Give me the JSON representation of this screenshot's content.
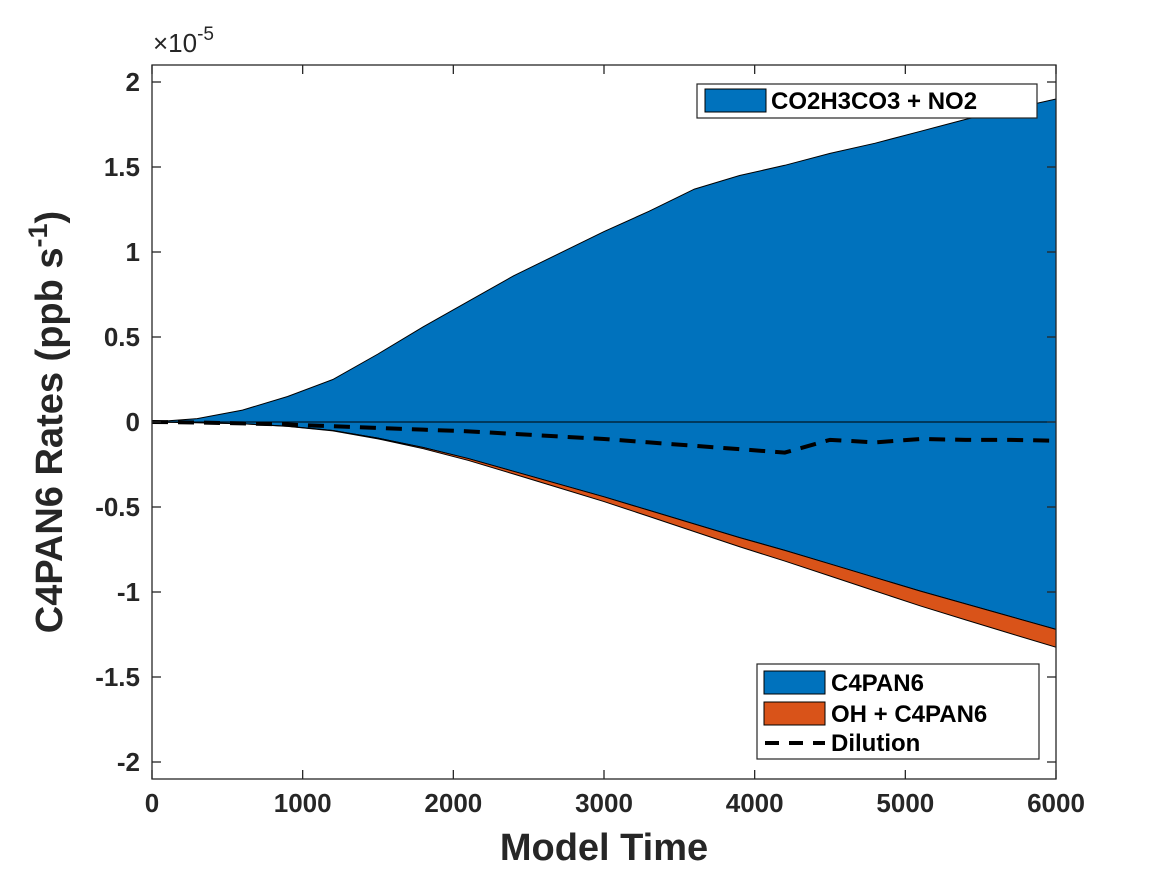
{
  "chart_data": {
    "type": "area",
    "xlabel": "Model Time",
    "ylabel": "C4PAN6 Rates (ppb s",
    "ylabel_exponent": "-1",
    "ylabel_close": ")",
    "y_multiplier_prefix": "×10",
    "y_multiplier_exponent": "-5",
    "xlim": [
      0,
      6000
    ],
    "ylim": [
      -2.1,
      2.1
    ],
    "xticks": [
      0,
      1000,
      2000,
      3000,
      4000,
      5000,
      6000
    ],
    "xtick_labels": [
      "0",
      "1000",
      "2000",
      "3000",
      "4000",
      "5000",
      "6000"
    ],
    "yticks": [
      2,
      1.5,
      1,
      0.5,
      0,
      -0.5,
      -1,
      -1.5,
      -2
    ],
    "ytick_labels": [
      "2",
      "1.5",
      "1",
      "0.5",
      "0",
      "-0.5",
      "-1",
      "-1.5",
      "-2"
    ],
    "grid": false,
    "legend_top": {
      "placement": "top-right",
      "entries": [
        "CO2H3CO3 + NO2"
      ]
    },
    "legend_bottom": {
      "placement": "bottom-right",
      "entries": [
        "C4PAN6",
        "OH + C4PAN6",
        "Dilution"
      ]
    },
    "colors": {
      "blue": "#0072BD",
      "orange": "#D95319",
      "dilution": "#000000"
    },
    "x": [
      0,
      300,
      600,
      900,
      1200,
      1500,
      1800,
      2100,
      2400,
      2700,
      3000,
      3300,
      3600,
      3900,
      4200,
      4500,
      4800,
      5100,
      5400,
      5700,
      6000
    ],
    "series": [
      {
        "name": "CO2H3CO3 + NO2",
        "color": "blue",
        "values": [
          0,
          0.02,
          0.07,
          0.15,
          0.25,
          0.4,
          0.56,
          0.71,
          0.86,
          0.99,
          1.12,
          1.24,
          1.37,
          1.45,
          1.51,
          1.58,
          1.64,
          1.71,
          1.78,
          1.84,
          1.9
        ]
      },
      {
        "name": "C4PAN6",
        "color": "blue",
        "values": [
          0,
          -0.004,
          -0.01,
          -0.025,
          -0.05,
          -0.095,
          -0.15,
          -0.215,
          -0.29,
          -0.365,
          -0.44,
          -0.52,
          -0.6,
          -0.68,
          -0.755,
          -0.835,
          -0.915,
          -0.995,
          -1.07,
          -1.145,
          -1.22
        ]
      },
      {
        "name": "OH + C4PAN6",
        "color": "orange",
        "values": [
          0,
          -0.0002,
          -0.0005,
          -0.001,
          -0.002,
          -0.004,
          -0.007,
          -0.011,
          -0.016,
          -0.022,
          -0.028,
          -0.036,
          -0.045,
          -0.054,
          -0.063,
          -0.071,
          -0.079,
          -0.087,
          -0.094,
          -0.1,
          -0.105
        ]
      },
      {
        "name": "Dilution",
        "color": "dilution",
        "style": "dashed",
        "values": [
          0,
          -0.003,
          -0.008,
          -0.015,
          -0.025,
          -0.035,
          -0.045,
          -0.055,
          -0.07,
          -0.085,
          -0.1,
          -0.12,
          -0.14,
          -0.16,
          -0.18,
          -0.105,
          -0.12,
          -0.1,
          -0.105,
          -0.105,
          -0.11
        ]
      }
    ]
  }
}
